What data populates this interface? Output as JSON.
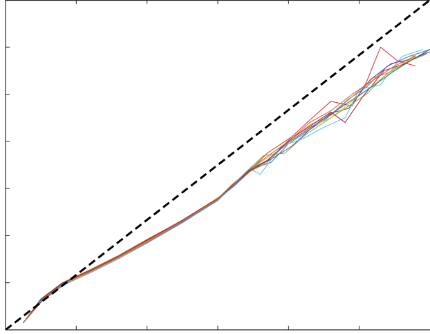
{
  "chart_data": {
    "type": "line",
    "title": "",
    "xlabel": "",
    "ylabel": "",
    "xlim": [
      0,
      6
    ],
    "ylim": [
      0,
      7
    ],
    "grid": false,
    "tick_labels_visible": false,
    "x_ticks": [
      0,
      1,
      2,
      3,
      4,
      5,
      6
    ],
    "y_ticks": [
      0,
      1,
      2,
      3,
      4,
      5,
      6,
      7
    ],
    "reference_line": {
      "style": "dashed",
      "color": "#000000",
      "points": [
        [
          0,
          0
        ],
        [
          6,
          7
        ]
      ]
    },
    "series": [
      {
        "color": "#1f77b4",
        "points": [
          [
            0.25,
            0.15
          ],
          [
            0.5,
            0.65
          ],
          [
            0.8,
            0.98
          ],
          [
            1.2,
            1.25
          ],
          [
            1.6,
            1.55
          ],
          [
            2.0,
            1.88
          ],
          [
            2.5,
            2.3
          ],
          [
            3.0,
            2.75
          ],
          [
            3.2,
            3.05
          ],
          [
            3.45,
            3.4
          ],
          [
            3.75,
            3.55
          ],
          [
            4.0,
            3.95
          ],
          [
            4.3,
            4.25
          ],
          [
            4.55,
            4.5
          ],
          [
            4.85,
            4.9
          ],
          [
            5.1,
            5.15
          ],
          [
            5.4,
            5.6
          ],
          [
            5.7,
            5.8
          ],
          [
            6.0,
            5.95
          ]
        ]
      },
      {
        "color": "#d62728",
        "points": [
          [
            0.25,
            0.15
          ],
          [
            0.52,
            0.62
          ],
          [
            0.82,
            0.95
          ],
          [
            1.2,
            1.22
          ],
          [
            1.6,
            1.52
          ],
          [
            2.0,
            1.85
          ],
          [
            2.5,
            2.28
          ],
          [
            3.0,
            2.78
          ],
          [
            3.2,
            3.08
          ],
          [
            3.45,
            3.38
          ],
          [
            3.7,
            3.75
          ],
          [
            4.05,
            4.1
          ],
          [
            4.3,
            4.45
          ],
          [
            4.6,
            4.85
          ],
          [
            4.9,
            4.75
          ],
          [
            5.1,
            5.25
          ],
          [
            5.3,
            6.0
          ],
          [
            5.55,
            5.7
          ],
          [
            5.8,
            5.6
          ]
        ]
      },
      {
        "color": "#ff7f0e",
        "points": [
          [
            0.25,
            0.15
          ],
          [
            0.5,
            0.66
          ],
          [
            0.8,
            1.0
          ],
          [
            1.2,
            1.28
          ],
          [
            1.6,
            1.58
          ],
          [
            2.0,
            1.92
          ],
          [
            2.5,
            2.32
          ],
          [
            3.0,
            2.8
          ],
          [
            3.2,
            3.02
          ],
          [
            3.45,
            3.35
          ],
          [
            3.7,
            3.55
          ],
          [
            4.0,
            4.0
          ],
          [
            4.3,
            4.35
          ],
          [
            4.6,
            4.55
          ],
          [
            4.9,
            4.95
          ],
          [
            5.2,
            5.35
          ],
          [
            5.5,
            5.5
          ],
          [
            5.8,
            5.85
          ]
        ]
      },
      {
        "color": "#7e2f8e",
        "points": [
          [
            0.25,
            0.15
          ],
          [
            0.52,
            0.63
          ],
          [
            0.82,
            0.97
          ],
          [
            1.2,
            1.24
          ],
          [
            1.6,
            1.54
          ],
          [
            2.0,
            1.86
          ],
          [
            2.5,
            2.29
          ],
          [
            3.0,
            2.76
          ],
          [
            3.25,
            3.08
          ],
          [
            3.5,
            3.45
          ],
          [
            3.75,
            3.62
          ],
          [
            4.05,
            3.9
          ],
          [
            4.3,
            4.25
          ],
          [
            4.6,
            4.6
          ],
          [
            4.85,
            4.7
          ],
          [
            5.15,
            5.3
          ],
          [
            5.45,
            5.65
          ],
          [
            5.75,
            5.75
          ],
          [
            6.0,
            5.9
          ]
        ]
      },
      {
        "color": "#77ac30",
        "points": [
          [
            0.25,
            0.15
          ],
          [
            0.5,
            0.64
          ],
          [
            0.8,
            0.97
          ],
          [
            1.2,
            1.26
          ],
          [
            1.6,
            1.56
          ],
          [
            2.0,
            1.9
          ],
          [
            2.5,
            2.31
          ],
          [
            3.0,
            2.77
          ],
          [
            3.2,
            3.04
          ],
          [
            3.4,
            3.35
          ],
          [
            3.65,
            3.7
          ],
          [
            3.95,
            3.75
          ],
          [
            4.25,
            4.15
          ],
          [
            4.55,
            4.45
          ],
          [
            4.8,
            4.7
          ],
          [
            5.1,
            5.0
          ],
          [
            5.4,
            5.45
          ],
          [
            5.7,
            5.7
          ],
          [
            5.95,
            5.85
          ]
        ]
      },
      {
        "color": "#4dbeee",
        "points": [
          [
            0.25,
            0.15
          ],
          [
            0.5,
            0.62
          ],
          [
            0.8,
            0.94
          ],
          [
            1.2,
            1.21
          ],
          [
            1.6,
            1.51
          ],
          [
            2.0,
            1.84
          ],
          [
            2.5,
            2.27
          ],
          [
            3.0,
            2.74
          ],
          [
            3.2,
            3.03
          ],
          [
            3.45,
            3.42
          ],
          [
            3.6,
            3.3
          ],
          [
            3.9,
            3.9
          ],
          [
            4.2,
            4.05
          ],
          [
            4.5,
            4.3
          ],
          [
            4.8,
            4.5
          ],
          [
            5.0,
            5.1
          ],
          [
            5.3,
            5.2
          ],
          [
            5.6,
            5.8
          ],
          [
            5.9,
            5.95
          ]
        ]
      },
      {
        "color": "#a2142f",
        "points": [
          [
            0.25,
            0.15
          ],
          [
            0.5,
            0.65
          ],
          [
            0.8,
            0.99
          ],
          [
            1.2,
            1.27
          ],
          [
            1.6,
            1.57
          ],
          [
            2.0,
            1.91
          ],
          [
            2.5,
            2.33
          ],
          [
            3.0,
            2.79
          ],
          [
            3.2,
            3.06
          ],
          [
            3.45,
            3.37
          ],
          [
            3.7,
            3.58
          ],
          [
            4.0,
            4.02
          ],
          [
            4.3,
            4.32
          ],
          [
            4.6,
            4.62
          ],
          [
            4.8,
            4.4
          ],
          [
            5.05,
            4.95
          ],
          [
            5.35,
            5.5
          ],
          [
            5.65,
            5.65
          ],
          [
            5.95,
            5.9
          ]
        ]
      },
      {
        "color": "#edb120",
        "points": [
          [
            0.25,
            0.15
          ],
          [
            0.5,
            0.63
          ],
          [
            0.8,
            0.96
          ],
          [
            1.2,
            1.23
          ],
          [
            1.6,
            1.53
          ],
          [
            2.0,
            1.87
          ],
          [
            2.5,
            2.3
          ],
          [
            3.0,
            2.77
          ],
          [
            3.2,
            3.05
          ],
          [
            3.45,
            3.4
          ],
          [
            3.7,
            3.65
          ],
          [
            4.0,
            3.95
          ],
          [
            4.3,
            4.3
          ],
          [
            4.6,
            4.5
          ],
          [
            4.9,
            4.85
          ],
          [
            5.2,
            5.2
          ],
          [
            5.5,
            5.55
          ],
          [
            5.8,
            5.8
          ]
        ]
      },
      {
        "color": "#0072bd",
        "points": [
          [
            0.25,
            0.15
          ],
          [
            0.5,
            0.64
          ],
          [
            0.8,
            0.98
          ],
          [
            1.2,
            1.25
          ],
          [
            1.6,
            1.55
          ],
          [
            2.0,
            1.89
          ],
          [
            2.5,
            2.31
          ],
          [
            3.0,
            2.78
          ],
          [
            3.2,
            3.04
          ],
          [
            3.45,
            3.39
          ],
          [
            3.7,
            3.6
          ],
          [
            4.0,
            3.98
          ],
          [
            4.3,
            4.28
          ],
          [
            4.6,
            4.58
          ],
          [
            4.9,
            4.88
          ],
          [
            5.2,
            5.18
          ],
          [
            5.5,
            5.5
          ],
          [
            5.8,
            5.78
          ],
          [
            6.0,
            5.95
          ]
        ]
      },
      {
        "color": "#d95319",
        "points": [
          [
            0.25,
            0.15
          ],
          [
            0.52,
            0.64
          ],
          [
            0.82,
            0.98
          ],
          [
            1.2,
            1.26
          ],
          [
            1.6,
            1.56
          ],
          [
            2.0,
            1.89
          ],
          [
            2.5,
            2.32
          ],
          [
            3.0,
            2.78
          ],
          [
            3.2,
            3.07
          ],
          [
            3.45,
            3.41
          ],
          [
            3.7,
            3.68
          ],
          [
            4.0,
            4.0
          ],
          [
            4.3,
            4.4
          ],
          [
            4.6,
            4.65
          ],
          [
            4.9,
            5.0
          ],
          [
            5.2,
            5.3
          ],
          [
            5.5,
            5.6
          ],
          [
            5.8,
            5.82
          ]
        ]
      }
    ]
  }
}
